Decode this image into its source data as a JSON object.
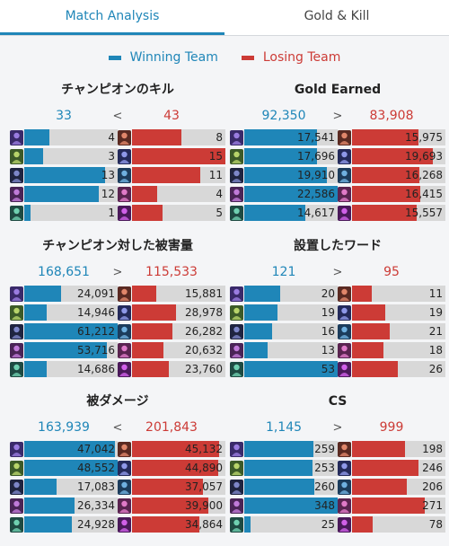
{
  "tabs": [
    {
      "label": "Match Analysis",
      "active": true
    },
    {
      "label": "Gold & Kill",
      "active": false
    }
  ],
  "legend": {
    "win_label": "Winning Team",
    "lose_label": "Losing Team"
  },
  "colors": {
    "win": "#1f86b8",
    "lose": "#cc3b36",
    "track": "#d8d8d8"
  },
  "panels": [
    {
      "title": "チャンピオンのキル",
      "win_total": "33",
      "cmp": "<",
      "lose_total": "43",
      "win": [
        {
          "v": "4",
          "f": 0.27
        },
        {
          "v": "3",
          "f": 0.2
        },
        {
          "v": "13",
          "f": 0.87
        },
        {
          "v": "12",
          "f": 0.8
        },
        {
          "v": "1",
          "f": 0.07
        }
      ],
      "lose": [
        {
          "v": "8",
          "f": 0.53
        },
        {
          "v": "15",
          "f": 1.0
        },
        {
          "v": "11",
          "f": 0.73
        },
        {
          "v": "4",
          "f": 0.27
        },
        {
          "v": "5",
          "f": 0.33
        }
      ]
    },
    {
      "title": "Gold Earned",
      "win_total": "92,350",
      "cmp": ">",
      "lose_total": "83,908",
      "win": [
        {
          "v": "17,541",
          "f": 0.78
        },
        {
          "v": "17,696",
          "f": 0.78
        },
        {
          "v": "19,910",
          "f": 0.88
        },
        {
          "v": "22,586",
          "f": 1.0
        },
        {
          "v": "14,617",
          "f": 0.65
        }
      ],
      "lose": [
        {
          "v": "15,975",
          "f": 0.71
        },
        {
          "v": "19,693",
          "f": 0.87
        },
        {
          "v": "16,268",
          "f": 0.72
        },
        {
          "v": "16,415",
          "f": 0.73
        },
        {
          "v": "15,557",
          "f": 0.69
        }
      ]
    },
    {
      "title": "チャンピオン対した被害量",
      "win_total": "168,651",
      "cmp": ">",
      "lose_total": "115,533",
      "win": [
        {
          "v": "24,091",
          "f": 0.39
        },
        {
          "v": "14,946",
          "f": 0.24
        },
        {
          "v": "61,212",
          "f": 1.0
        },
        {
          "v": "53,716",
          "f": 0.88
        },
        {
          "v": "14,686",
          "f": 0.24
        }
      ],
      "lose": [
        {
          "v": "15,881",
          "f": 0.26
        },
        {
          "v": "28,978",
          "f": 0.47
        },
        {
          "v": "26,282",
          "f": 0.43
        },
        {
          "v": "20,632",
          "f": 0.34
        },
        {
          "v": "23,760",
          "f": 0.39
        }
      ]
    },
    {
      "title": "設置したワード",
      "win_total": "121",
      "cmp": ">",
      "lose_total": "95",
      "win": [
        {
          "v": "20",
          "f": 0.38
        },
        {
          "v": "19",
          "f": 0.36
        },
        {
          "v": "16",
          "f": 0.3
        },
        {
          "v": "13",
          "f": 0.25
        },
        {
          "v": "53",
          "f": 1.0
        }
      ],
      "lose": [
        {
          "v": "11",
          "f": 0.21
        },
        {
          "v": "19",
          "f": 0.36
        },
        {
          "v": "21",
          "f": 0.4
        },
        {
          "v": "18",
          "f": 0.34
        },
        {
          "v": "26",
          "f": 0.49
        }
      ]
    },
    {
      "title": "被ダメージ",
      "win_total": "163,939",
      "cmp": "<",
      "lose_total": "201,843",
      "win": [
        {
          "v": "47,042",
          "f": 0.97
        },
        {
          "v": "48,552",
          "f": 1.0
        },
        {
          "v": "17,083",
          "f": 0.35
        },
        {
          "v": "26,334",
          "f": 0.54
        },
        {
          "v": "24,928",
          "f": 0.51
        }
      ],
      "lose": [
        {
          "v": "45,132",
          "f": 0.93
        },
        {
          "v": "44,890",
          "f": 0.92
        },
        {
          "v": "37,057",
          "f": 0.76
        },
        {
          "v": "39,900",
          "f": 0.82
        },
        {
          "v": "34,864",
          "f": 0.72
        }
      ]
    },
    {
      "title": "CS",
      "win_total": "1,145",
      "cmp": ">",
      "lose_total": "999",
      "win": [
        {
          "v": "259",
          "f": 0.74
        },
        {
          "v": "253",
          "f": 0.73
        },
        {
          "v": "260",
          "f": 0.75
        },
        {
          "v": "348",
          "f": 1.0
        },
        {
          "v": "25",
          "f": 0.07
        }
      ],
      "lose": [
        {
          "v": "198",
          "f": 0.57
        },
        {
          "v": "246",
          "f": 0.71
        },
        {
          "v": "206",
          "f": 0.59
        },
        {
          "v": "271",
          "f": 0.78
        },
        {
          "v": "78",
          "f": 0.22
        }
      ]
    }
  ],
  "win_icons": [
    {
      "name": "champion-portrait-purple-icon",
      "bg": "#3a2a6a",
      "fg": "#9a7ce0"
    },
    {
      "name": "champion-portrait-green-icon",
      "bg": "#3c5a28",
      "fg": "#b7d36a"
    },
    {
      "name": "champion-portrait-dark-icon",
      "bg": "#1f2440",
      "fg": "#7d86c8"
    },
    {
      "name": "champion-portrait-violet-icon",
      "bg": "#4a2456",
      "fg": "#c07ad8"
    },
    {
      "name": "champion-portrait-teal-icon",
      "bg": "#1e4a42",
      "fg": "#6fd0b0"
    }
  ],
  "lose_icons": [
    {
      "name": "champion-portrait-red-icon",
      "bg": "#5a2a22",
      "fg": "#e0866a"
    },
    {
      "name": "champion-portrait-navy-icon",
      "bg": "#242a5a",
      "fg": "#8e98e8"
    },
    {
      "name": "champion-portrait-blue-icon",
      "bg": "#1c3c5c",
      "fg": "#6fb0e0"
    },
    {
      "name": "champion-portrait-pink-icon",
      "bg": "#5a2450",
      "fg": "#e07ac8"
    },
    {
      "name": "champion-portrait-magenta-icon",
      "bg": "#4a1a5a",
      "fg": "#d060e8"
    }
  ]
}
